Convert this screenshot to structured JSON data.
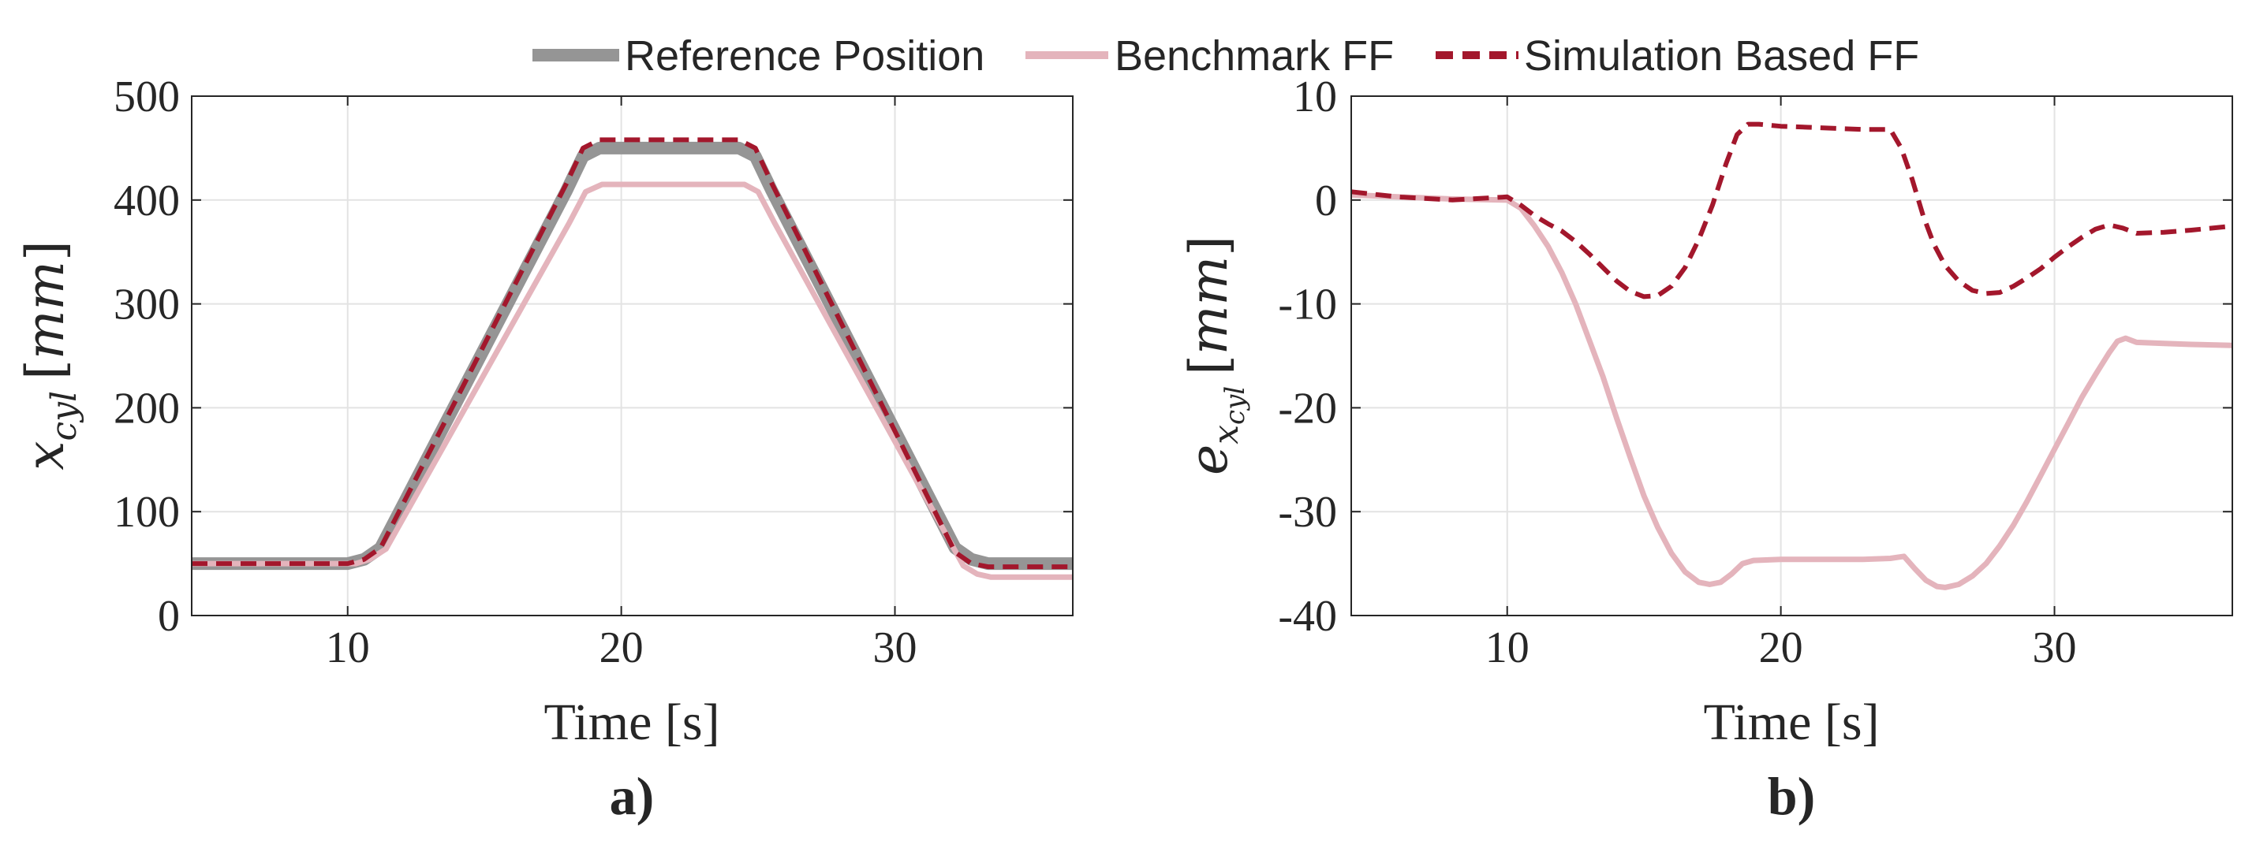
{
  "legend": [
    {
      "name": "Reference Position",
      "color": "#959595",
      "style": "solid-thick"
    },
    {
      "name": "Benchmark FF",
      "color": "#E4B4BC",
      "style": "solid"
    },
    {
      "name": "Simulation Based FF",
      "color": "#A3172C",
      "style": "dashed"
    }
  ],
  "chart_data": [
    {
      "type": "line",
      "panel_label": "a)",
      "xlabel": "Time [s]",
      "ylabel": {
        "base": "x",
        "sub": "cyl",
        "unit": "mm"
      },
      "xlim": [
        4.3,
        36.5
      ],
      "ylim": [
        0,
        500
      ],
      "xticks": [
        "10",
        "20",
        "30"
      ],
      "yticks": [
        "0",
        "100",
        "200",
        "300",
        "400",
        "500"
      ],
      "grid": true,
      "series": [
        {
          "name": "Reference Position",
          "color": "#959595",
          "x": [
            4.3,
            10.0,
            10.6,
            11.2,
            18.0,
            18.6,
            19.2,
            24.3,
            24.9,
            25.5,
            32.2,
            32.8,
            33.4,
            36.5
          ],
          "y": [
            50,
            50,
            54,
            65,
            409,
            442,
            450,
            450,
            442,
            409,
            65,
            54,
            50,
            50
          ]
        },
        {
          "name": "Benchmark FF",
          "color": "#E4B4BC",
          "x": [
            4.3,
            10.3,
            10.8,
            11.4,
            18.1,
            18.7,
            19.3,
            24.5,
            25.0,
            25.6,
            32.5,
            33.0,
            33.5,
            36.5
          ],
          "y": [
            50,
            50,
            54,
            64,
            378,
            408,
            415,
            415,
            408,
            378,
            48,
            40,
            37,
            37
          ]
        },
        {
          "name": "Simulation Based FF",
          "color": "#A3172C",
          "x": [
            4.3,
            10.0,
            10.6,
            11.2,
            18.0,
            18.6,
            19.2,
            24.3,
            24.9,
            25.5,
            32.2,
            32.8,
            33.4,
            36.5
          ],
          "y": [
            50,
            50,
            54,
            65,
            416,
            450,
            458,
            458,
            450,
            416,
            61,
            50,
            47,
            47
          ]
        }
      ]
    },
    {
      "type": "line",
      "panel_label": "b)",
      "xlabel": "Time [s]",
      "ylabel": {
        "base": "e",
        "sub": "x",
        "subsub": "cyl",
        "unit": "mm"
      },
      "xlim": [
        4.3,
        36.5
      ],
      "ylim": [
        -40,
        10
      ],
      "xticks": [
        "10",
        "20",
        "30"
      ],
      "yticks": [
        "-40",
        "-30",
        "-20",
        "-10",
        "0",
        "10"
      ],
      "grid": true,
      "series": [
        {
          "name": "Benchmark FF",
          "color": "#E4B4BC",
          "x": [
            4.3,
            6.0,
            8.0,
            10.0,
            10.5,
            11.0,
            11.5,
            12.0,
            12.5,
            13.0,
            13.5,
            14.0,
            14.5,
            15.0,
            15.5,
            16.0,
            16.5,
            17.0,
            17.4,
            17.8,
            18.2,
            18.6,
            19.0,
            20.0,
            21.0,
            22.0,
            23.0,
            24.0,
            24.5,
            24.9,
            25.3,
            25.7,
            26.0,
            26.5,
            27.0,
            27.5,
            28.0,
            28.5,
            29.0,
            29.5,
            30.0,
            30.5,
            31.0,
            31.5,
            32.0,
            32.3,
            32.6,
            33.0,
            34.0,
            35.0,
            36.5
          ],
          "y": [
            0.5,
            0.3,
            0.1,
            0.0,
            -0.8,
            -2.5,
            -4.5,
            -7.0,
            -10.0,
            -13.5,
            -17.0,
            -21.0,
            -24.8,
            -28.5,
            -31.5,
            -34.0,
            -35.8,
            -36.8,
            -37.0,
            -36.8,
            -36.0,
            -35.0,
            -34.7,
            -34.6,
            -34.6,
            -34.6,
            -34.6,
            -34.5,
            -34.3,
            -35.5,
            -36.6,
            -37.2,
            -37.3,
            -37.0,
            -36.2,
            -35.0,
            -33.3,
            -31.3,
            -29.0,
            -26.5,
            -24.0,
            -21.5,
            -19.0,
            -16.8,
            -14.7,
            -13.6,
            -13.3,
            -13.7,
            -13.8,
            -13.9,
            -14.0
          ]
        },
        {
          "name": "Simulation Based FF",
          "color": "#A3172C",
          "x": [
            4.3,
            6.0,
            8.0,
            10.0,
            10.5,
            11.0,
            11.5,
            12.0,
            12.5,
            13.0,
            13.5,
            14.0,
            14.5,
            15.0,
            15.5,
            16.0,
            16.5,
            17.0,
            17.5,
            18.0,
            18.4,
            18.8,
            19.2,
            20.0,
            21.0,
            22.0,
            23.0,
            24.0,
            24.4,
            24.8,
            25.2,
            25.6,
            26.0,
            26.5,
            27.0,
            27.5,
            28.0,
            28.5,
            29.0,
            29.5,
            30.0,
            30.5,
            31.0,
            31.5,
            32.0,
            32.5,
            33.0,
            34.0,
            35.0,
            36.5
          ],
          "y": [
            0.8,
            0.3,
            0.0,
            0.3,
            -0.5,
            -1.5,
            -2.3,
            -3.0,
            -4.0,
            -5.2,
            -6.5,
            -7.8,
            -8.8,
            -9.3,
            -9.2,
            -8.3,
            -6.5,
            -3.8,
            -0.5,
            3.5,
            6.3,
            7.3,
            7.3,
            7.1,
            7.0,
            6.9,
            6.8,
            6.8,
            5.0,
            2.0,
            -1.5,
            -4.3,
            -6.3,
            -7.8,
            -8.7,
            -9.0,
            -8.9,
            -8.3,
            -7.5,
            -6.6,
            -5.5,
            -4.5,
            -3.6,
            -2.8,
            -2.4,
            -2.7,
            -3.2,
            -3.1,
            -2.9,
            -2.5
          ]
        }
      ]
    }
  ]
}
